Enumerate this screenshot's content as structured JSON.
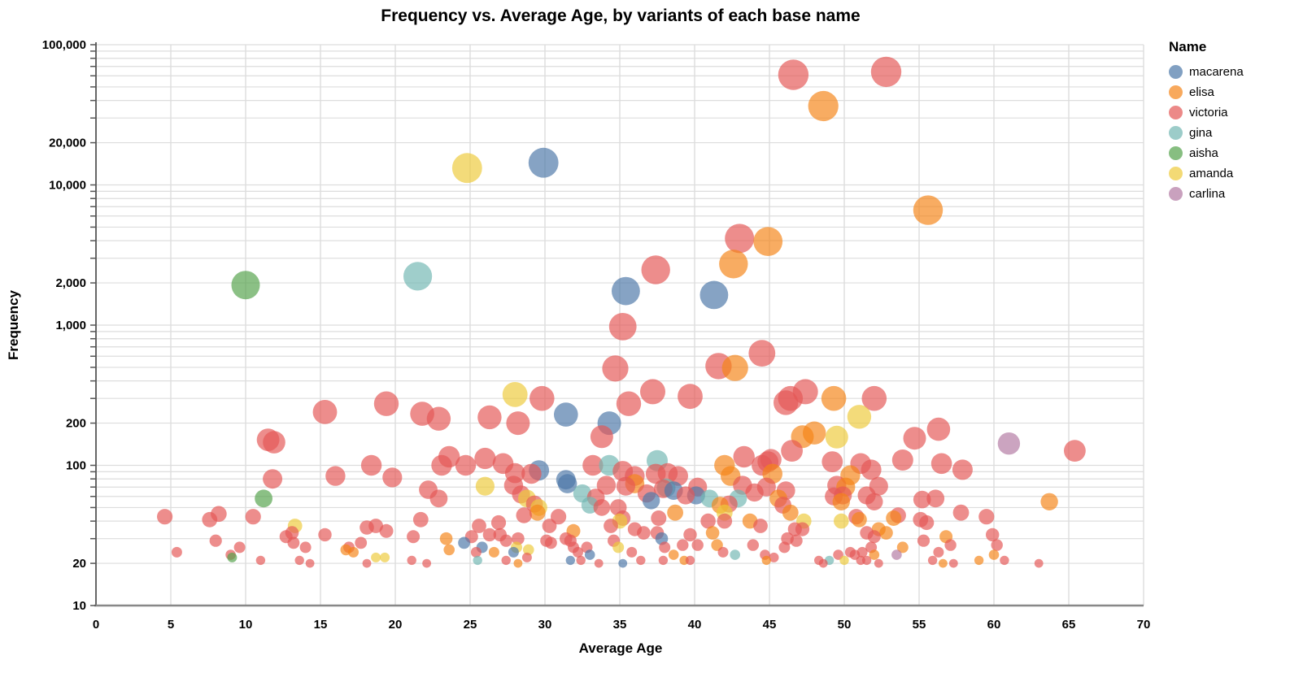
{
  "title": "Frequency vs. Average Age, by variants of each base name",
  "x_axis": {
    "title": "Average Age",
    "domain": [
      0,
      70
    ],
    "ticks": [
      0,
      5,
      10,
      15,
      20,
      25,
      30,
      35,
      40,
      45,
      50,
      55,
      60,
      65,
      70
    ]
  },
  "y_axis": {
    "title": "Frequency",
    "scale": "log",
    "domain": [
      10,
      100000
    ],
    "labeled_ticks": [
      {
        "value": 100000,
        "label": "100,000"
      },
      {
        "value": 20000,
        "label": "20,000"
      },
      {
        "value": 10000,
        "label": "10,000"
      },
      {
        "value": 2000,
        "label": "2,000"
      },
      {
        "value": 1000,
        "label": "1,000"
      },
      {
        "value": 200,
        "label": "200"
      },
      {
        "value": 100,
        "label": "100"
      },
      {
        "value": 20,
        "label": "20"
      },
      {
        "value": 10,
        "label": "10"
      }
    ],
    "minor_gridlines": true
  },
  "legend": {
    "title": "Name",
    "items": [
      {
        "label": "macarena",
        "color": "#4c78a8"
      },
      {
        "label": "elisa",
        "color": "#f58518"
      },
      {
        "label": "victoria",
        "color": "#e45756"
      },
      {
        "label": "gina",
        "color": "#72b7b2"
      },
      {
        "label": "aisha",
        "color": "#54a24b"
      },
      {
        "label": "amanda",
        "color": "#eeca3b"
      },
      {
        "label": "carlina",
        "color": "#b279a2"
      }
    ]
  },
  "style": {
    "point_opacity": 0.68,
    "grid_color": "#dddddd",
    "axis_line_color": "#666666",
    "bottom_axis_color": "#888888"
  },
  "chart_data": {
    "type": "scatter",
    "xlabel": "Average Age",
    "ylabel": "Frequency",
    "x_range": [
      0,
      70
    ],
    "y_range_log": [
      10,
      100000
    ],
    "size_encodes": "frequency",
    "series": [
      {
        "name": "macarena",
        "color": "#4c78a8",
        "points": [
          [
            29.9,
            14400
          ],
          [
            35.4,
            1750
          ],
          [
            41.3,
            1640
          ],
          [
            31.4,
            230
          ],
          [
            34.3,
            200
          ],
          [
            29.6,
            92
          ],
          [
            31.4,
            79
          ],
          [
            31.5,
            74
          ],
          [
            37.1,
            56
          ],
          [
            38.6,
            66
          ],
          [
            40.1,
            61
          ],
          [
            24.6,
            28
          ],
          [
            25.8,
            26
          ],
          [
            27.9,
            24
          ],
          [
            31.7,
            21
          ],
          [
            33.0,
            23
          ],
          [
            35.2,
            20
          ],
          [
            37.8,
            30
          ]
        ]
      },
      {
        "name": "elisa",
        "color": "#f58518",
        "points": [
          [
            48.6,
            36500
          ],
          [
            55.6,
            6600
          ],
          [
            44.9,
            3950
          ],
          [
            42.6,
            2730
          ],
          [
            42.7,
            495
          ],
          [
            49.3,
            300
          ],
          [
            48.0,
            170
          ],
          [
            47.2,
            160
          ],
          [
            45.2,
            87
          ],
          [
            50.4,
            85
          ],
          [
            42.0,
            100
          ],
          [
            42.4,
            84
          ],
          [
            36.0,
            74
          ],
          [
            29.5,
            46
          ],
          [
            41.7,
            52
          ],
          [
            45.6,
            58
          ],
          [
            50.1,
            70
          ],
          [
            49.8,
            55
          ],
          [
            51.0,
            41
          ],
          [
            52.3,
            35
          ],
          [
            52.8,
            33
          ],
          [
            53.3,
            42
          ],
          [
            53.9,
            26
          ],
          [
            56.8,
            31
          ],
          [
            56.6,
            20
          ],
          [
            60.0,
            23
          ],
          [
            59.0,
            21
          ],
          [
            63.7,
            55
          ],
          [
            46.4,
            46
          ],
          [
            16.7,
            25
          ],
          [
            17.2,
            24
          ],
          [
            23.4,
            30
          ],
          [
            23.6,
            25
          ],
          [
            26.6,
            24
          ],
          [
            28.2,
            20
          ],
          [
            31.9,
            34
          ],
          [
            38.7,
            46
          ],
          [
            38.6,
            23
          ],
          [
            39.3,
            21
          ],
          [
            41.2,
            33
          ],
          [
            41.5,
            27
          ],
          [
            43.7,
            40
          ],
          [
            44.8,
            21
          ],
          [
            52.0,
            23
          ]
        ]
      },
      {
        "name": "victoria",
        "color": "#e45756",
        "points": [
          [
            46.6,
            61000
          ],
          [
            52.8,
            64000
          ],
          [
            43.0,
            4150
          ],
          [
            37.4,
            2480
          ],
          [
            35.2,
            975
          ],
          [
            44.5,
            630
          ],
          [
            41.6,
            510
          ],
          [
            34.7,
            490
          ],
          [
            15.3,
            240
          ],
          [
            19.4,
            275
          ],
          [
            21.8,
            233
          ],
          [
            22.9,
            215
          ],
          [
            26.3,
            220
          ],
          [
            28.2,
            200
          ],
          [
            29.8,
            300
          ],
          [
            35.6,
            275
          ],
          [
            37.2,
            335
          ],
          [
            39.7,
            310
          ],
          [
            46.4,
            300
          ],
          [
            46.1,
            280
          ],
          [
            47.4,
            335
          ],
          [
            52.0,
            300
          ],
          [
            46.5,
            127
          ],
          [
            33.8,
            160
          ],
          [
            54.7,
            156
          ],
          [
            56.3,
            181
          ],
          [
            53.9,
            109
          ],
          [
            56.5,
            103
          ],
          [
            57.9,
            93
          ],
          [
            49.2,
            106
          ],
          [
            51.1,
            103
          ],
          [
            51.8,
            93
          ],
          [
            52.3,
            71
          ],
          [
            44.9,
            106
          ],
          [
            44.5,
            100
          ],
          [
            65.4,
            127
          ],
          [
            11.5,
            152
          ],
          [
            11.9,
            146
          ],
          [
            11.8,
            80
          ],
          [
            16.0,
            84
          ],
          [
            18.4,
            100
          ],
          [
            19.8,
            82
          ],
          [
            23.1,
            100
          ],
          [
            22.2,
            67
          ],
          [
            23.6,
            115
          ],
          [
            24.7,
            100
          ],
          [
            26.0,
            112
          ],
          [
            27.2,
            103
          ],
          [
            28.0,
            88
          ],
          [
            29.1,
            87
          ],
          [
            33.2,
            100
          ],
          [
            35.2,
            91
          ],
          [
            36.0,
            84
          ],
          [
            37.4,
            87
          ],
          [
            38.2,
            88
          ],
          [
            38.9,
            84
          ],
          [
            43.3,
            115
          ],
          [
            45.1,
            110
          ],
          [
            22.9,
            58
          ],
          [
            27.9,
            72
          ],
          [
            28.4,
            62
          ],
          [
            29.3,
            53
          ],
          [
            33.4,
            59
          ],
          [
            34.1,
            72
          ],
          [
            35.4,
            71
          ],
          [
            36.8,
            63
          ],
          [
            37.9,
            68
          ],
          [
            39.4,
            61
          ],
          [
            40.2,
            70
          ],
          [
            42.3,
            53
          ],
          [
            43.2,
            72
          ],
          [
            44.0,
            64
          ],
          [
            44.8,
            70
          ],
          [
            45.9,
            52
          ],
          [
            46.1,
            66
          ],
          [
            4.6,
            43
          ],
          [
            5.4,
            24
          ],
          [
            7.6,
            41
          ],
          [
            8.2,
            45
          ],
          [
            8.0,
            29
          ],
          [
            9.0,
            23
          ],
          [
            9.6,
            26
          ],
          [
            11.0,
            21
          ],
          [
            10.5,
            43
          ],
          [
            13.1,
            33
          ],
          [
            12.7,
            31
          ],
          [
            13.2,
            28
          ],
          [
            14.0,
            26
          ],
          [
            13.6,
            21
          ],
          [
            14.3,
            20
          ],
          [
            15.3,
            32
          ],
          [
            16.9,
            26
          ],
          [
            17.7,
            28
          ],
          [
            18.1,
            36
          ],
          [
            18.7,
            37
          ],
          [
            19.4,
            34
          ],
          [
            18.1,
            20
          ],
          [
            21.7,
            41
          ],
          [
            21.2,
            31
          ],
          [
            21.1,
            21
          ],
          [
            22.1,
            20
          ],
          [
            25.6,
            37
          ],
          [
            26.3,
            32
          ],
          [
            25.1,
            31
          ],
          [
            25.4,
            24
          ],
          [
            26.9,
            39
          ],
          [
            27.0,
            32
          ],
          [
            27.4,
            29
          ],
          [
            27.4,
            21
          ],
          [
            28.2,
            30
          ],
          [
            28.8,
            22
          ],
          [
            28.6,
            44
          ],
          [
            30.1,
            29
          ],
          [
            30.4,
            28
          ],
          [
            30.3,
            37
          ],
          [
            30.9,
            43
          ],
          [
            31.4,
            30
          ],
          [
            31.7,
            29
          ],
          [
            31.9,
            26
          ],
          [
            32.2,
            24
          ],
          [
            32.4,
            21
          ],
          [
            32.8,
            26
          ],
          [
            33.6,
            20
          ],
          [
            33.8,
            50
          ],
          [
            34.9,
            50
          ],
          [
            35.2,
            42
          ],
          [
            34.4,
            37
          ],
          [
            34.6,
            29
          ],
          [
            36.0,
            35
          ],
          [
            36.6,
            33
          ],
          [
            35.8,
            24
          ],
          [
            36.4,
            21
          ],
          [
            37.5,
            33
          ],
          [
            37.6,
            42
          ],
          [
            38.0,
            26
          ],
          [
            37.9,
            21
          ],
          [
            39.2,
            27
          ],
          [
            39.7,
            21
          ],
          [
            39.7,
            32
          ],
          [
            40.2,
            27
          ],
          [
            40.9,
            40
          ],
          [
            42.0,
            40
          ],
          [
            41.9,
            24
          ],
          [
            43.9,
            27
          ],
          [
            44.7,
            23
          ],
          [
            45.3,
            22
          ],
          [
            46.0,
            26
          ],
          [
            44.4,
            37
          ],
          [
            46.7,
            35
          ],
          [
            47.2,
            35
          ],
          [
            46.8,
            29
          ],
          [
            46.2,
            30
          ],
          [
            49.3,
            60
          ],
          [
            49.9,
            61
          ],
          [
            49.5,
            72
          ],
          [
            50.8,
            43
          ],
          [
            51.5,
            61
          ],
          [
            52.0,
            55
          ],
          [
            51.5,
            33
          ],
          [
            52.0,
            31
          ],
          [
            51.8,
            26
          ],
          [
            51.2,
            24
          ],
          [
            51.5,
            21
          ],
          [
            52.3,
            20
          ],
          [
            53.6,
            44
          ],
          [
            50.4,
            24
          ],
          [
            49.6,
            23
          ],
          [
            50.7,
            23
          ],
          [
            51.1,
            21
          ],
          [
            48.3,
            21
          ],
          [
            48.6,
            20
          ],
          [
            55.2,
            57
          ],
          [
            56.1,
            58
          ],
          [
            55.1,
            41
          ],
          [
            55.5,
            39
          ],
          [
            55.3,
            29
          ],
          [
            57.1,
            27
          ],
          [
            56.3,
            24
          ],
          [
            55.9,
            21
          ],
          [
            57.3,
            20
          ],
          [
            57.8,
            46
          ],
          [
            59.5,
            43
          ],
          [
            59.9,
            32
          ],
          [
            60.2,
            27
          ],
          [
            60.7,
            21
          ],
          [
            63.0,
            20
          ]
        ]
      },
      {
        "name": "gina",
        "color": "#72b7b2",
        "points": [
          [
            21.5,
            2230
          ],
          [
            34.3,
            100
          ],
          [
            37.5,
            108
          ],
          [
            32.5,
            63
          ],
          [
            33.0,
            52
          ],
          [
            38.1,
            69
          ],
          [
            41.0,
            58
          ],
          [
            42.9,
            58
          ],
          [
            25.5,
            21
          ],
          [
            42.7,
            23
          ],
          [
            49.0,
            21
          ]
        ]
      },
      {
        "name": "aisha",
        "color": "#54a24b",
        "points": [
          [
            10.0,
            1930
          ],
          [
            11.2,
            58
          ],
          [
            9.1,
            22
          ]
        ]
      },
      {
        "name": "amanda",
        "color": "#eeca3b",
        "points": [
          [
            24.8,
            13200
          ],
          [
            28.0,
            320
          ],
          [
            51.0,
            222
          ],
          [
            49.5,
            159
          ],
          [
            26.0,
            71
          ],
          [
            28.8,
            58
          ],
          [
            29.6,
            50
          ],
          [
            13.3,
            37
          ],
          [
            18.7,
            22
          ],
          [
            19.3,
            22
          ],
          [
            28.1,
            26
          ],
          [
            28.9,
            25
          ],
          [
            35.0,
            40
          ],
          [
            34.9,
            26
          ],
          [
            42.0,
            46
          ],
          [
            47.3,
            40
          ],
          [
            49.8,
            40
          ],
          [
            50.0,
            21
          ]
        ]
      },
      {
        "name": "carlina",
        "color": "#b279a2",
        "points": [
          [
            61.0,
            143
          ],
          [
            53.5,
            23
          ]
        ]
      }
    ]
  }
}
